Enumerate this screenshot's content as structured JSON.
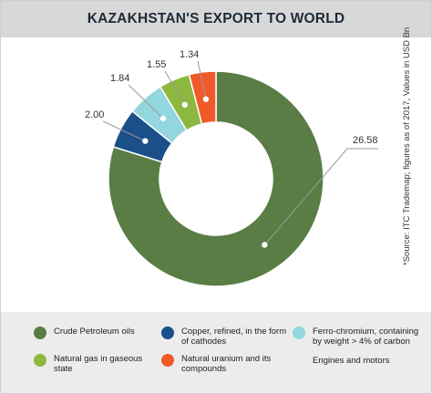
{
  "page": {
    "title": "KAZAKHSTAN'S EXPORT TO WORLD"
  },
  "source_note": "*Source: ITC Trademap; figures as of 2017, Values in USD Bn",
  "colors": {
    "crude": "#5a7d45",
    "copper": "#1b4f8a",
    "ferro": "#93d6de",
    "gas": "#8cb83f",
    "uranium": "#f05a28",
    "title_bg": "#d8d8d8",
    "legend_bg": "#ececec"
  },
  "chart_data": {
    "type": "donut",
    "title": "KAZAKHSTAN'S EXPORT TO WORLD",
    "unit": "USD Bn",
    "series": [
      {
        "name": "Crude Petroleum oils",
        "value": 26.58,
        "label": "26.58",
        "color": "#5a7d45"
      },
      {
        "name": "Copper, refined, in the form of cathodes",
        "value": 2.0,
        "label": "2.00",
        "color": "#1b4f8a"
      },
      {
        "name": "Ferro-chromium, containing by weight > 4% of carbon",
        "value": 1.84,
        "label": "1.84",
        "color": "#93d6de"
      },
      {
        "name": "Natural gas in gaseous state",
        "value": 1.55,
        "label": "1.55",
        "color": "#8cb83f"
      },
      {
        "name": "Natural uranium and its compounds",
        "value": 1.34,
        "label": "1.34",
        "color": "#f05a28"
      }
    ]
  },
  "legend": [
    {
      "label": "Crude Petroleum oils",
      "color": "#5a7d45"
    },
    {
      "label": "Copper, refined, in the form of cathodes",
      "color": "#1b4f8a"
    },
    {
      "label": "Ferro-chromium, containing by weight > 4% of carbon",
      "color": "#93d6de"
    },
    {
      "label": "Natural gas in gaseous state",
      "color": "#8cb83f"
    },
    {
      "label": "Natural uranium and its compounds",
      "color": "#f05a28"
    },
    {
      "label": "Engines and motors",
      "color": ""
    }
  ]
}
